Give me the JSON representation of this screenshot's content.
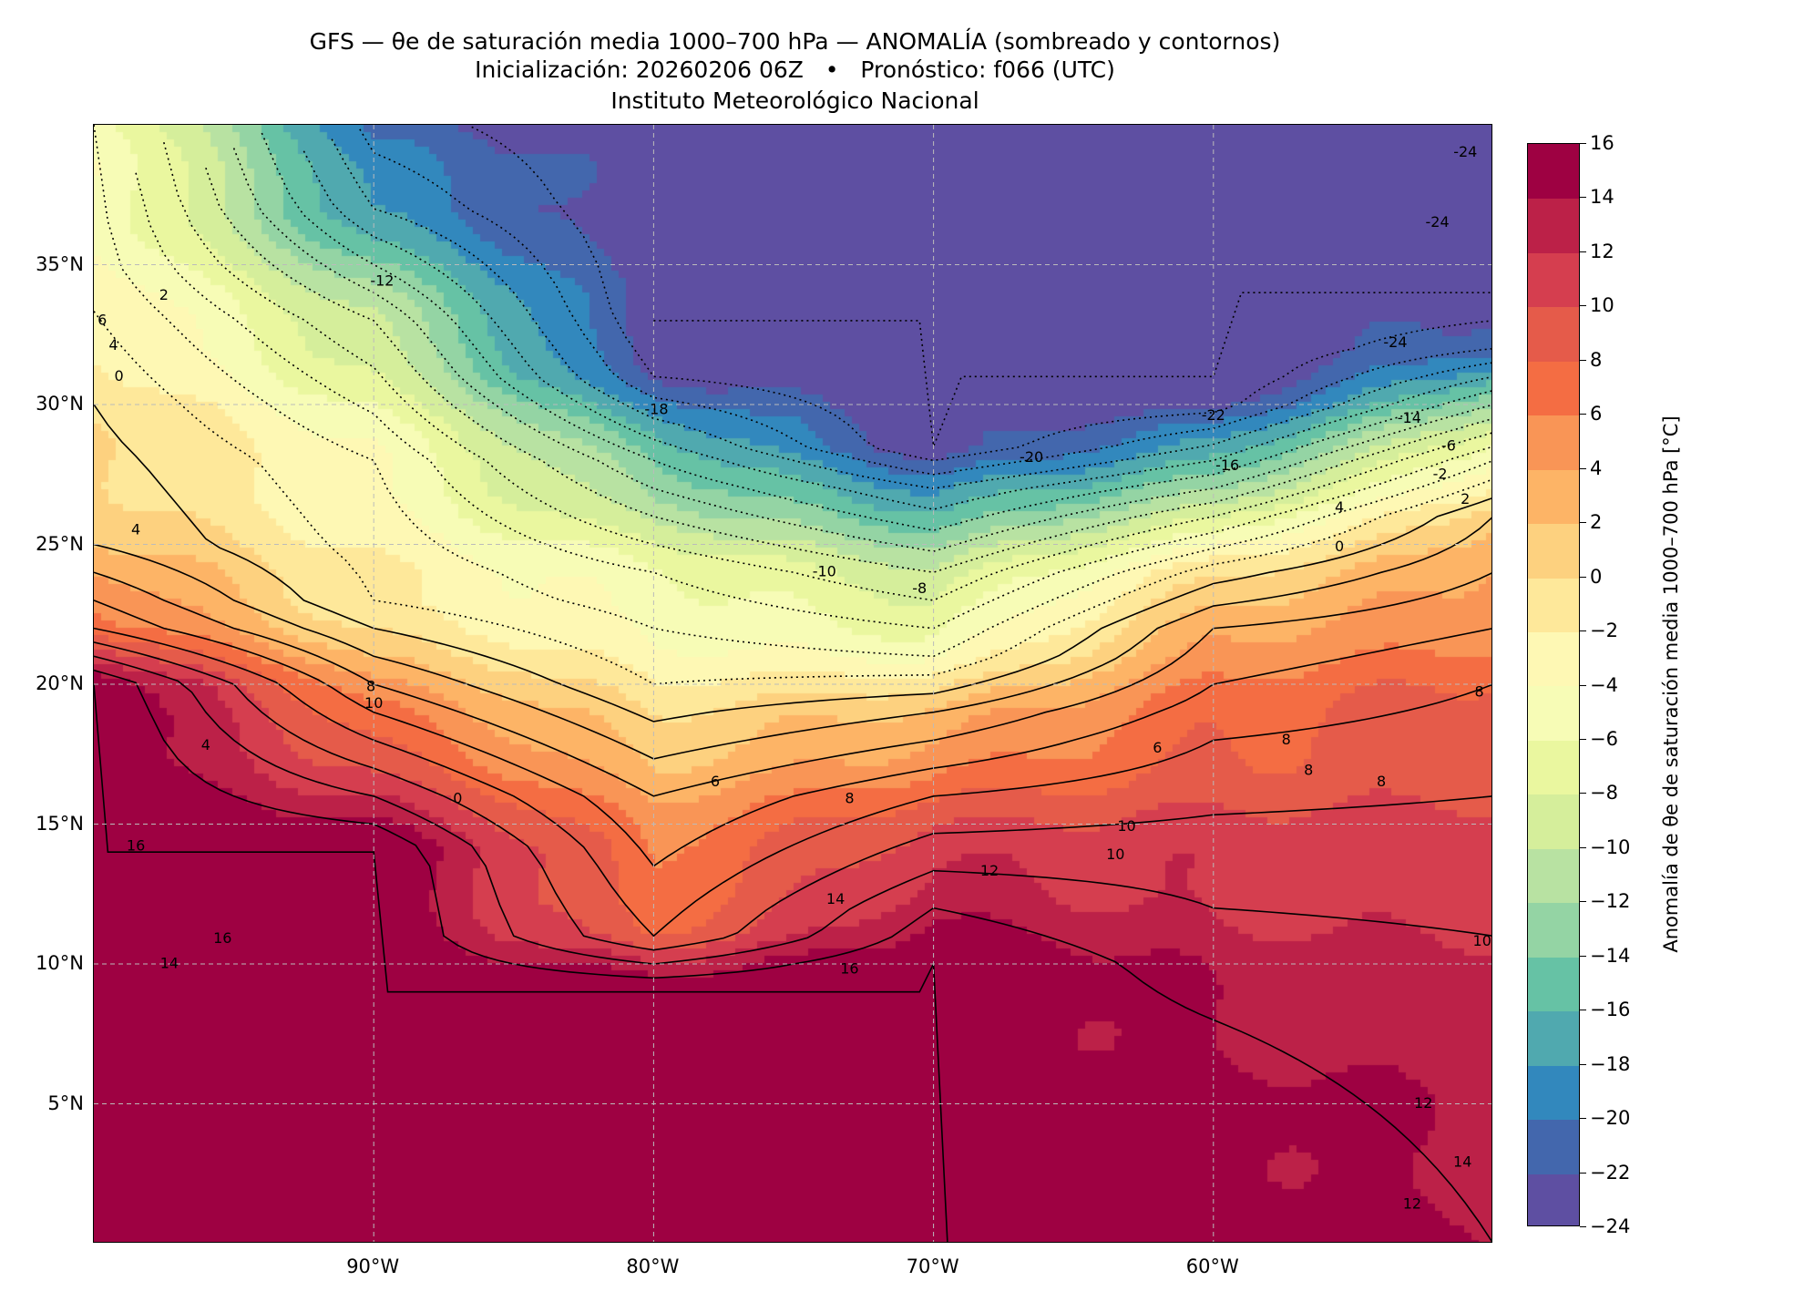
{
  "header": {
    "title_line1": "GFS — θe de saturación media 1000–700 hPa — ANOMALÍA (sombreado y contornos)",
    "title_line2": "Inicialización: 20260206 06Z   •   Pronóstico: f066 (UTC)",
    "title_line3": "Instituto Meteorológico Nacional"
  },
  "map": {
    "lon_range": [
      -100,
      -50
    ],
    "lat_range": [
      0,
      40
    ],
    "x_ticks": [
      {
        "lon": -90,
        "label": "90°W"
      },
      {
        "lon": -80,
        "label": "80°W"
      },
      {
        "lon": -70,
        "label": "70°W"
      },
      {
        "lon": -60,
        "label": "60°W"
      }
    ],
    "y_ticks": [
      {
        "lat": 35,
        "label": "35°N"
      },
      {
        "lat": 30,
        "label": "30°N"
      },
      {
        "lat": 25,
        "label": "25°N"
      },
      {
        "lat": 20,
        "label": "20°N"
      },
      {
        "lat": 15,
        "label": "15°N"
      },
      {
        "lat": 10,
        "label": "10°N"
      },
      {
        "lat": 5,
        "label": "5°N"
      }
    ],
    "contour_labels": [
      {
        "text": "-24",
        "lon": -51.0,
        "lat": 39.0
      },
      {
        "text": "-24",
        "lon": -52.0,
        "lat": 36.5
      },
      {
        "text": "-24",
        "lon": -53.5,
        "lat": 32.2
      },
      {
        "text": "-22",
        "lon": -60.0,
        "lat": 29.6
      },
      {
        "text": "-20",
        "lon": -66.5,
        "lat": 28.1
      },
      {
        "text": "-16",
        "lon": -59.5,
        "lat": 27.8
      },
      {
        "text": "-14",
        "lon": -53.0,
        "lat": 29.5
      },
      {
        "text": "-6",
        "lon": -51.6,
        "lat": 28.5
      },
      {
        "text": "-2",
        "lon": -51.9,
        "lat": 27.5
      },
      {
        "text": "2",
        "lon": -51.0,
        "lat": 26.6
      },
      {
        "text": "4",
        "lon": -55.5,
        "lat": 26.3
      },
      {
        "text": "0",
        "lon": -55.5,
        "lat": 24.9
      },
      {
        "text": "-18",
        "lon": -79.9,
        "lat": 29.8
      },
      {
        "text": "-12",
        "lon": -89.7,
        "lat": 34.4
      },
      {
        "text": "-10",
        "lon": -73.9,
        "lat": 24.0
      },
      {
        "text": "-8",
        "lon": -70.5,
        "lat": 23.4
      },
      {
        "text": "2",
        "lon": -97.5,
        "lat": 33.9
      },
      {
        "text": "6",
        "lon": -99.7,
        "lat": 33.0
      },
      {
        "text": "4",
        "lon": -99.3,
        "lat": 32.1
      },
      {
        "text": "0",
        "lon": -99.1,
        "lat": 31.0
      },
      {
        "text": "4",
        "lon": -98.5,
        "lat": 25.5
      },
      {
        "text": "8",
        "lon": -90.1,
        "lat": 19.9
      },
      {
        "text": "10",
        "lon": -90.0,
        "lat": 19.3
      },
      {
        "text": "6",
        "lon": -77.8,
        "lat": 16.5
      },
      {
        "text": "8",
        "lon": -73.0,
        "lat": 15.9
      },
      {
        "text": "6",
        "lon": -62.0,
        "lat": 17.7
      },
      {
        "text": "8",
        "lon": -57.4,
        "lat": 18.0
      },
      {
        "text": "8",
        "lon": -56.6,
        "lat": 16.9
      },
      {
        "text": "8",
        "lon": -54.0,
        "lat": 16.5
      },
      {
        "text": "8",
        "lon": -50.5,
        "lat": 19.7
      },
      {
        "text": "10",
        "lon": -63.1,
        "lat": 14.9
      },
      {
        "text": "10",
        "lon": -63.5,
        "lat": 13.9
      },
      {
        "text": "12",
        "lon": -68.0,
        "lat": 13.3
      },
      {
        "text": "14",
        "lon": -73.5,
        "lat": 12.3
      },
      {
        "text": "16",
        "lon": -73.0,
        "lat": 9.8
      },
      {
        "text": "16",
        "lon": -98.5,
        "lat": 14.2
      },
      {
        "text": "16",
        "lon": -95.4,
        "lat": 10.9
      },
      {
        "text": "14",
        "lon": -97.3,
        "lat": 10.0
      },
      {
        "text": "4",
        "lon": -96.0,
        "lat": 17.8
      },
      {
        "text": "12",
        "lon": -52.5,
        "lat": 5.0
      },
      {
        "text": "12",
        "lon": -52.9,
        "lat": 1.4
      },
      {
        "text": "14",
        "lon": -51.1,
        "lat": 2.9
      },
      {
        "text": "10",
        "lon": -50.4,
        "lat": 10.8
      },
      {
        "text": "0",
        "lon": -87.0,
        "lat": 15.9
      }
    ]
  },
  "colorbar": {
    "label": "Anomalía de θe de saturación media 1000–700 hPa [°C]",
    "levels": [
      -24,
      -22,
      -20,
      -18,
      -16,
      -14,
      -12,
      -10,
      -8,
      -6,
      -4,
      -2,
      0,
      2,
      4,
      6,
      8,
      10,
      12,
      14,
      16
    ],
    "tick_labels": [
      "16",
      "14",
      "12",
      "10",
      "8",
      "6",
      "4",
      "2",
      "0",
      "−2",
      "−4",
      "−6",
      "−8",
      "−10",
      "−12",
      "−14",
      "−16",
      "−18",
      "−20",
      "−22",
      "−24"
    ],
    "colors": [
      "#5e4fa2",
      "#4367ad",
      "#3288bd",
      "#50a9af",
      "#66c2a5",
      "#94d4a4",
      "#b8e2a2",
      "#d5ee9b",
      "#eaf79f",
      "#f7fcb6",
      "#fef8b4",
      "#fee89a",
      "#fdd17f",
      "#fdb466",
      "#f99556",
      "#f46d43",
      "#e55b4a",
      "#d53e4f",
      "#bc2148",
      "#9e0142"
    ]
  }
}
